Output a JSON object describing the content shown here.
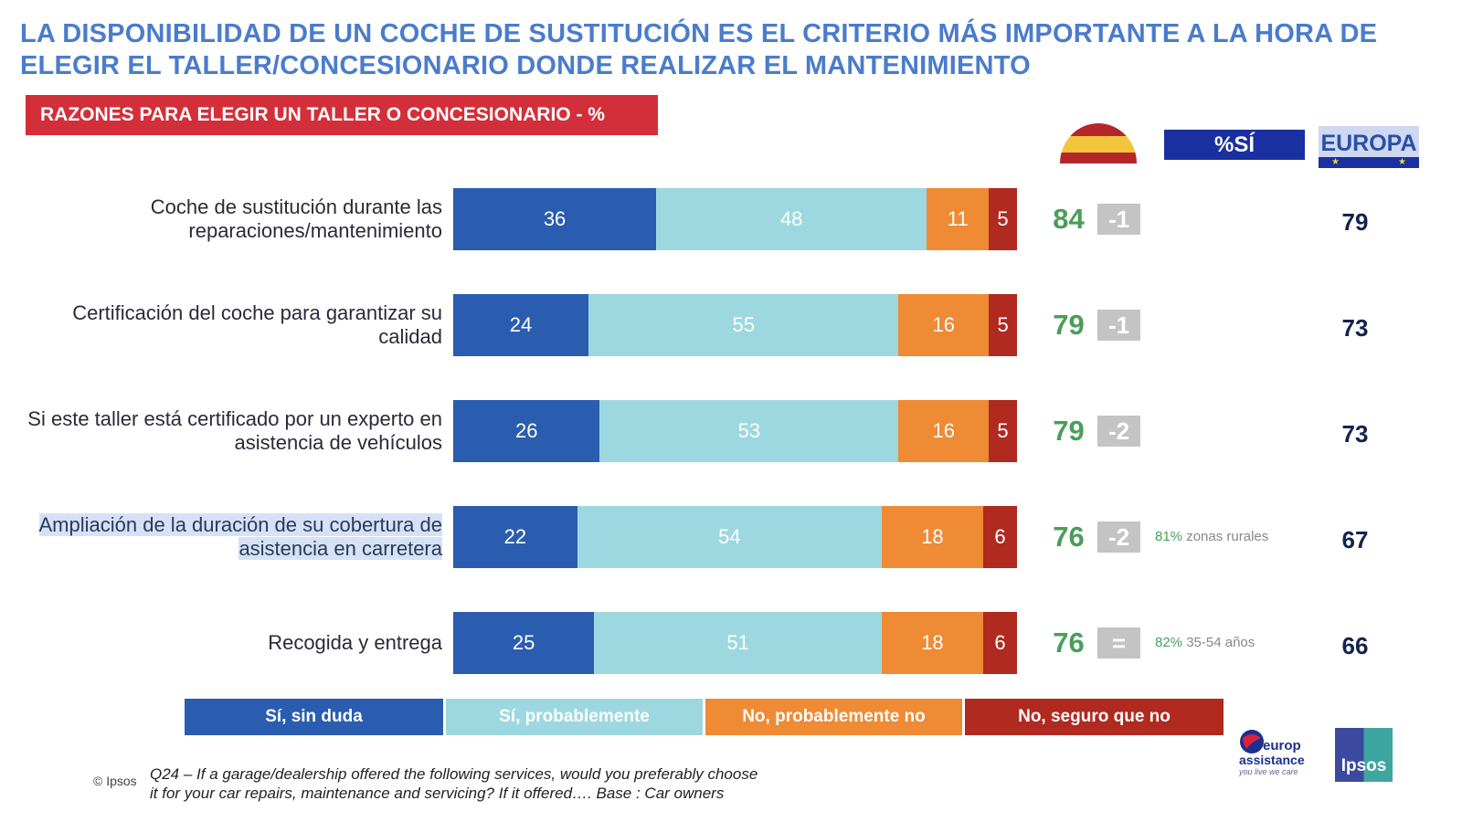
{
  "title": "LA DISPONIBILIDAD DE UN COCHE DE SUSTITUCIÓN ES EL CRITERIO MÁS IMPORTANTE A LA HORA DE ELEGIR EL TALLER/CONCESIONARIO DONDE REALIZAR EL MANTENIMIENTO",
  "subtitle": "RAZONES PARA ELEGIR UN TALLER O CONCESIONARIO - %",
  "headers": {
    "country_icon": "spain-flag-icon",
    "pct_yes": "%SÍ",
    "europe": "EUROPA"
  },
  "colors": {
    "si_sin_duda": "#2a5db0",
    "si_probablemente": "#9dd8e0",
    "no_probablemente_no": "#ef8a35",
    "no_seguro_que_no": "#b02a20",
    "spain_value": "#4a9e58",
    "diff_box": "#c4c4c4",
    "europe_value": "#13234d",
    "title": "#4a7ccc",
    "subtitle_bg": "#d32f3a"
  },
  "chart_data": {
    "type": "bar",
    "orientation": "horizontal-stacked-100",
    "title": "RAZONES PARA ELEGIR UN TALLER O CONCESIONARIO - %",
    "categories": [
      "Coche de sustitución durante las reparaciones/mantenimiento",
      "Certificación del coche para garantizar su calidad",
      "Si este taller está certificado por un experto en asistencia de vehículos",
      "Ampliación de la duración de su cobertura de asistencia en carretera",
      "Recogida y entrega"
    ],
    "series": [
      {
        "name": "Sí, sin duda",
        "values": [
          36,
          24,
          26,
          22,
          25
        ]
      },
      {
        "name": "Sí, probablemente",
        "values": [
          48,
          55,
          53,
          54,
          51
        ]
      },
      {
        "name": "No, probablemente no",
        "values": [
          11,
          16,
          16,
          18,
          18
        ]
      },
      {
        "name": "No, seguro que no",
        "values": [
          5,
          5,
          5,
          6,
          6
        ]
      }
    ],
    "spain_pct_yes": [
      84,
      79,
      79,
      76,
      76
    ],
    "diff_vs_previous": [
      "-1",
      "-1",
      "-2",
      "-2",
      "="
    ],
    "notes": [
      null,
      null,
      null,
      {
        "highlight": "81%",
        "text": "zonas rurales"
      },
      {
        "highlight": "82%",
        "text": "35-54 años"
      }
    ],
    "europe_pct_yes": [
      79,
      73,
      73,
      67,
      66
    ],
    "legend_position": "bottom",
    "xlim": [
      0,
      100
    ]
  },
  "rows_display": [
    {
      "label_lines": [
        "Coche de sustitución durante las",
        "reparaciones/mantenimiento"
      ],
      "highlighted": false
    },
    {
      "label_lines": [
        "Certificación del coche para garantizar su",
        "calidad"
      ],
      "highlighted": false
    },
    {
      "label_lines": [
        "Si este taller está certificado por un experto en",
        "asistencia de vehículos"
      ],
      "highlighted": false
    },
    {
      "label_lines": [
        "Ampliación de la duración de su cobertura de",
        "asistencia en carretera"
      ],
      "highlighted": true
    },
    {
      "label_lines": [
        "Recogida y entrega"
      ],
      "highlighted": false
    }
  ],
  "legend": [
    "Sí, sin duda",
    "Sí, probablemente",
    "No, probablemente no",
    "No, seguro que no"
  ],
  "footer": {
    "copyright": "© Ipsos",
    "question_line1": "Q24 – If a garage/dealership offered the following services, would you preferably choose",
    "question_line2": "it for your car repairs, maintenance and servicing? If it offered…. Base : Car owners"
  },
  "logos": {
    "europ_assistance": {
      "line1": "europ",
      "line2": "assistance",
      "tagline": "you live we care"
    },
    "ipsos": "Ipsos"
  }
}
